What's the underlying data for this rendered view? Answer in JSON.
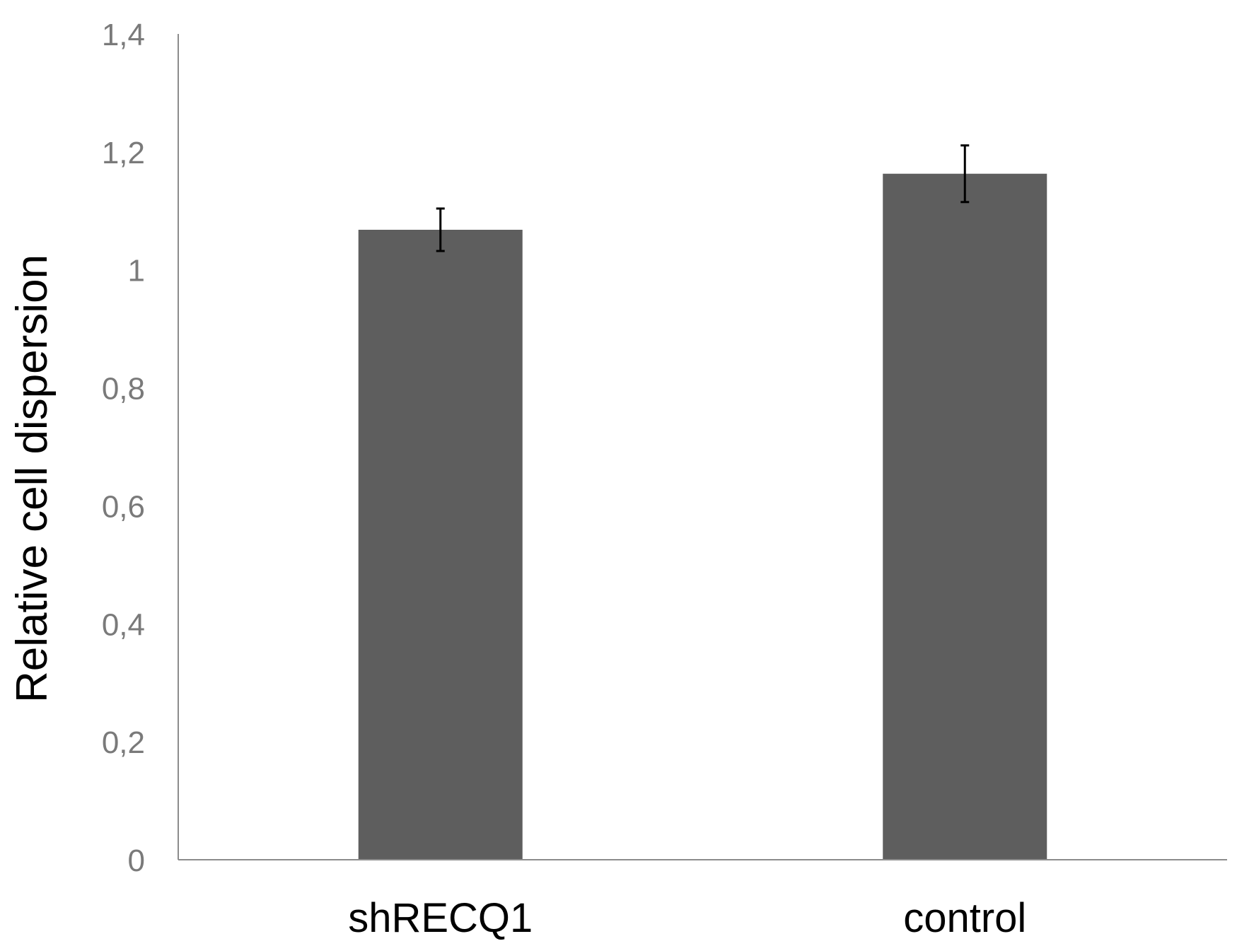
{
  "chart_data": {
    "type": "bar",
    "categories": [
      "shRECQ1",
      "control"
    ],
    "values": [
      1.068,
      1.163
    ],
    "error": [
      0.036,
      0.048
    ],
    "ylabel": "Relative cell dispersion",
    "xlabel": "",
    "ylim": [
      0,
      1.4
    ],
    "yticks": [
      0,
      0.2,
      0.4,
      0.6,
      0.8,
      1.0,
      1.2,
      1.4
    ],
    "ytick_labels": [
      "0",
      "0,2",
      "0,4",
      "0,6",
      "0,8",
      "1",
      "1,2",
      "1,4"
    ],
    "grid": false,
    "legend": "none",
    "colors": {
      "bar": "#5e5e5e",
      "axis": "#8c8c8c",
      "error_bar": "#000000",
      "tick_text": "#7a7a7a"
    }
  }
}
